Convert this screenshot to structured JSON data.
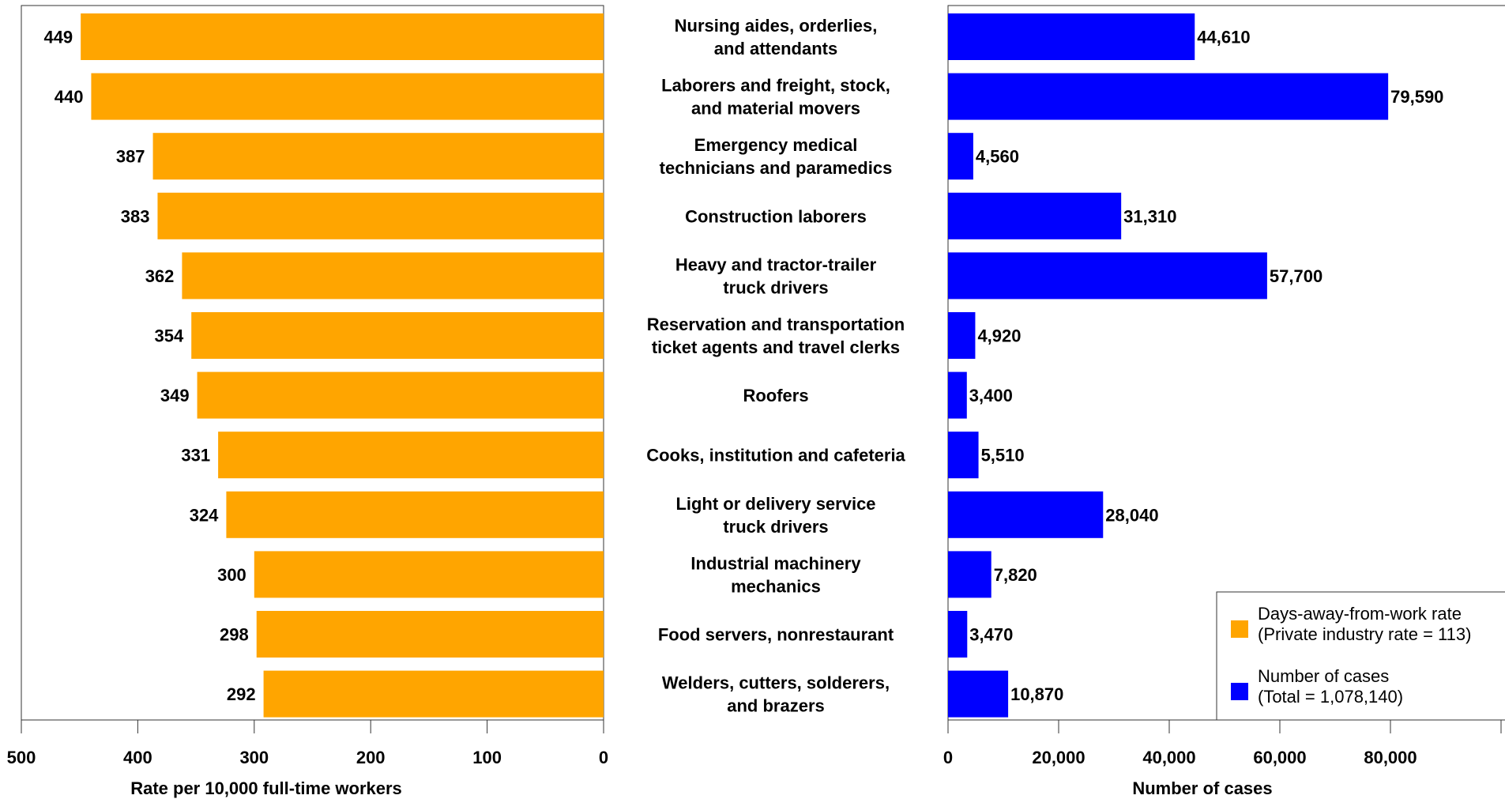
{
  "chart_data": {
    "type": "bar",
    "categories": [
      [
        "Nursing aides, orderlies,",
        "and attendants"
      ],
      [
        "Laborers and freight, stock,",
        "and material movers"
      ],
      [
        "Emergency medical",
        "technicians and paramedics"
      ],
      [
        "Construction laborers"
      ],
      [
        "Heavy and tractor-trailer",
        "truck drivers"
      ],
      [
        "Reservation and transportation",
        "ticket agents and travel clerks"
      ],
      [
        "Roofers"
      ],
      [
        "Cooks, institution and cafeteria"
      ],
      [
        "Light or delivery service",
        "truck drivers"
      ],
      [
        "Industrial machinery",
        "mechanics"
      ],
      [
        "Food servers, nonrestaurant"
      ],
      [
        "Welders, cutters, solderers,",
        "and brazers"
      ]
    ],
    "series": [
      {
        "name": "Days-away-from-work rate",
        "color": "#FFA500",
        "values": [
          449,
          440,
          387,
          383,
          362,
          354,
          349,
          331,
          324,
          300,
          298,
          292
        ],
        "labels": [
          "449",
          "440",
          "387",
          "383",
          "362",
          "354",
          "349",
          "331",
          "324",
          "300",
          "298",
          "292"
        ]
      },
      {
        "name": "Number of cases",
        "color": "#0000FF",
        "values": [
          44610,
          79590,
          4560,
          31310,
          57700,
          4920,
          3400,
          5510,
          28040,
          7820,
          3470,
          10870
        ],
        "labels": [
          "44,610",
          "79,590",
          "4,560",
          "31,310",
          "57,700",
          "4,920",
          "3,400",
          "5,510",
          "28,040",
          "7,820",
          "3,470",
          "10,870"
        ]
      }
    ],
    "left_axis": {
      "xlabel": "Rate per 10,000 full-time workers",
      "xlim": [
        0,
        500
      ],
      "reversed": true,
      "ticks": [
        500,
        400,
        300,
        200,
        100,
        0
      ],
      "tick_labels": [
        "500",
        "400",
        "300",
        "200",
        "100",
        "0"
      ]
    },
    "right_axis": {
      "xlabel": "Number of cases",
      "xlim": [
        0,
        100000
      ],
      "ticks": [
        0,
        20000,
        40000,
        60000,
        80000,
        100000
      ],
      "tick_labels": [
        "0",
        "20,000",
        "40,000",
        "60,000",
        "80,000",
        ""
      ]
    },
    "legend": {
      "position": "bottom-right",
      "items": [
        {
          "lines": [
            "Days-away-from-work rate",
            "(Private industry rate = 113)"
          ],
          "color": "#FFA500"
        },
        {
          "lines": [
            "Number of cases",
            "(Total = 1,078,140)"
          ],
          "color": "#0000FF"
        }
      ]
    }
  }
}
